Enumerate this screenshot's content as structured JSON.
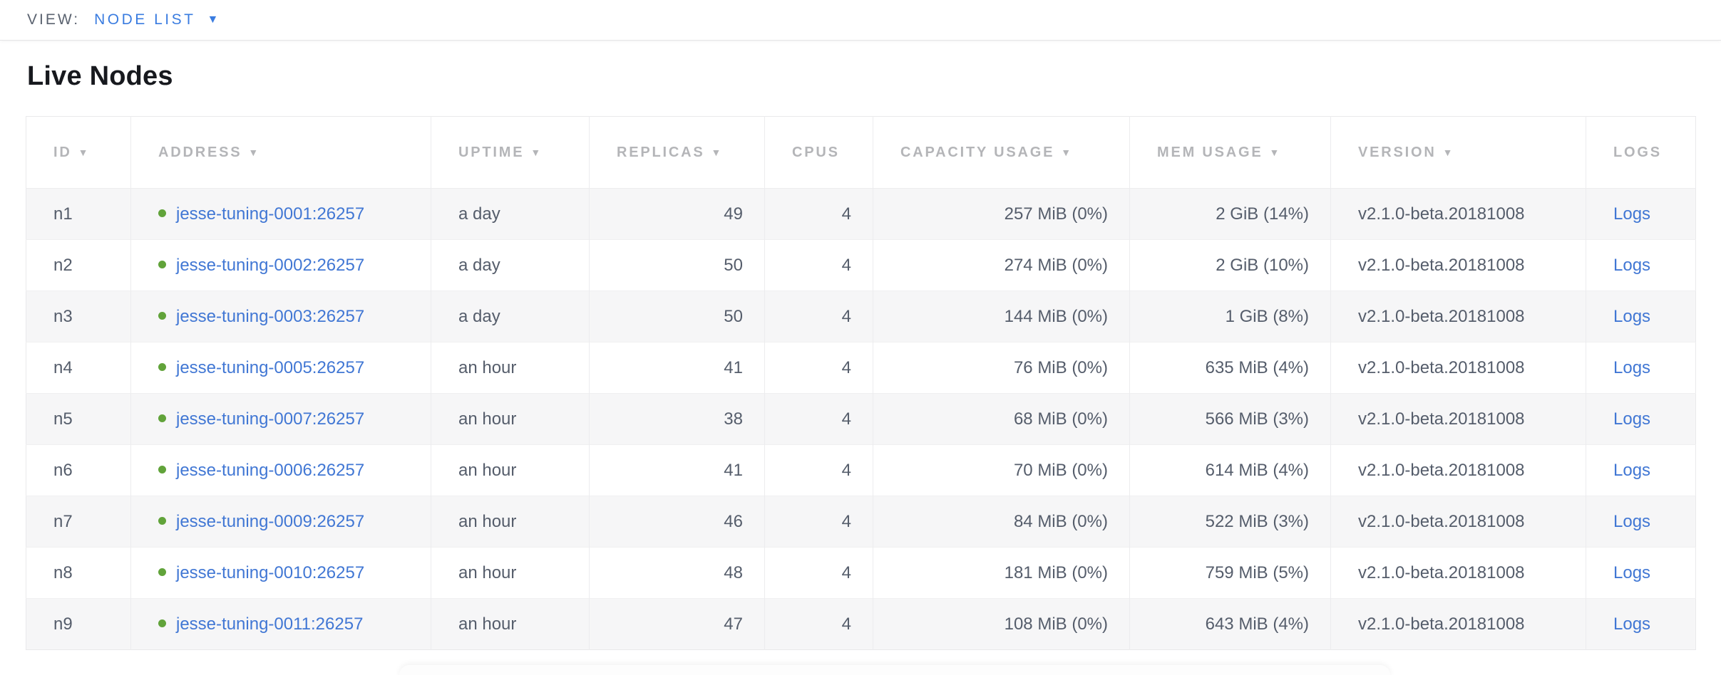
{
  "view_bar": {
    "label": "VIEW:",
    "selected_view": "NODE LIST",
    "caret_icon": "▼"
  },
  "page": {
    "title": "Live Nodes"
  },
  "table": {
    "sort_icon": "▼",
    "columns": [
      {
        "key": "id",
        "label": "ID",
        "sortable": true,
        "align": "left"
      },
      {
        "key": "address",
        "label": "ADDRESS",
        "sortable": true,
        "align": "left"
      },
      {
        "key": "uptime",
        "label": "UPTIME",
        "sortable": true,
        "align": "left"
      },
      {
        "key": "replicas",
        "label": "REPLICAS",
        "sortable": true,
        "align": "right"
      },
      {
        "key": "cpus",
        "label": "CPUS",
        "sortable": false,
        "align": "right"
      },
      {
        "key": "capacity",
        "label": "CAPACITY USAGE",
        "sortable": true,
        "align": "right"
      },
      {
        "key": "mem",
        "label": "MEM USAGE",
        "sortable": true,
        "align": "right"
      },
      {
        "key": "version",
        "label": "VERSION",
        "sortable": true,
        "align": "left"
      },
      {
        "key": "logs",
        "label": "LOGS",
        "sortable": false,
        "align": "left"
      }
    ],
    "rows": [
      {
        "id": "n1",
        "status": "healthy",
        "address": "jesse-tuning-0001:26257",
        "uptime": "a day",
        "replicas": "49",
        "cpus": "4",
        "capacity": "257 MiB (0%)",
        "mem": "2 GiB (14%)",
        "version": "v2.1.0-beta.20181008",
        "logs": "Logs"
      },
      {
        "id": "n2",
        "status": "healthy",
        "address": "jesse-tuning-0002:26257",
        "uptime": "a day",
        "replicas": "50",
        "cpus": "4",
        "capacity": "274 MiB (0%)",
        "mem": "2 GiB (10%)",
        "version": "v2.1.0-beta.20181008",
        "logs": "Logs"
      },
      {
        "id": "n3",
        "status": "healthy",
        "address": "jesse-tuning-0003:26257",
        "uptime": "a day",
        "replicas": "50",
        "cpus": "4",
        "capacity": "144 MiB (0%)",
        "mem": "1 GiB (8%)",
        "version": "v2.1.0-beta.20181008",
        "logs": "Logs"
      },
      {
        "id": "n4",
        "status": "healthy",
        "address": "jesse-tuning-0005:26257",
        "uptime": "an hour",
        "replicas": "41",
        "cpus": "4",
        "capacity": "76 MiB (0%)",
        "mem": "635 MiB (4%)",
        "version": "v2.1.0-beta.20181008",
        "logs": "Logs"
      },
      {
        "id": "n5",
        "status": "healthy",
        "address": "jesse-tuning-0007:26257",
        "uptime": "an hour",
        "replicas": "38",
        "cpus": "4",
        "capacity": "68 MiB (0%)",
        "mem": "566 MiB (3%)",
        "version": "v2.1.0-beta.20181008",
        "logs": "Logs"
      },
      {
        "id": "n6",
        "status": "healthy",
        "address": "jesse-tuning-0006:26257",
        "uptime": "an hour",
        "replicas": "41",
        "cpus": "4",
        "capacity": "70 MiB (0%)",
        "mem": "614 MiB (4%)",
        "version": "v2.1.0-beta.20181008",
        "logs": "Logs"
      },
      {
        "id": "n7",
        "status": "healthy",
        "address": "jesse-tuning-0009:26257",
        "uptime": "an hour",
        "replicas": "46",
        "cpus": "4",
        "capacity": "84 MiB (0%)",
        "mem": "522 MiB (3%)",
        "version": "v2.1.0-beta.20181008",
        "logs": "Logs"
      },
      {
        "id": "n8",
        "status": "healthy",
        "address": "jesse-tuning-0010:26257",
        "uptime": "an hour",
        "replicas": "48",
        "cpus": "4",
        "capacity": "181 MiB (0%)",
        "mem": "759 MiB (5%)",
        "version": "v2.1.0-beta.20181008",
        "logs": "Logs"
      },
      {
        "id": "n9",
        "status": "healthy",
        "address": "jesse-tuning-0011:26257",
        "uptime": "an hour",
        "replicas": "47",
        "cpus": "4",
        "capacity": "108 MiB (0%)",
        "mem": "643 MiB (4%)",
        "version": "v2.1.0-beta.20181008",
        "logs": "Logs"
      }
    ]
  },
  "colors": {
    "accent_blue": "#3a7ce0",
    "link_blue": "#4177d4",
    "healthy_green": "#61a33a",
    "header_gray": "#b4b5b8",
    "cell_text": "#555d6b",
    "view_label_color": "#5b6370",
    "stripe_gray": "#f6f6f7"
  }
}
